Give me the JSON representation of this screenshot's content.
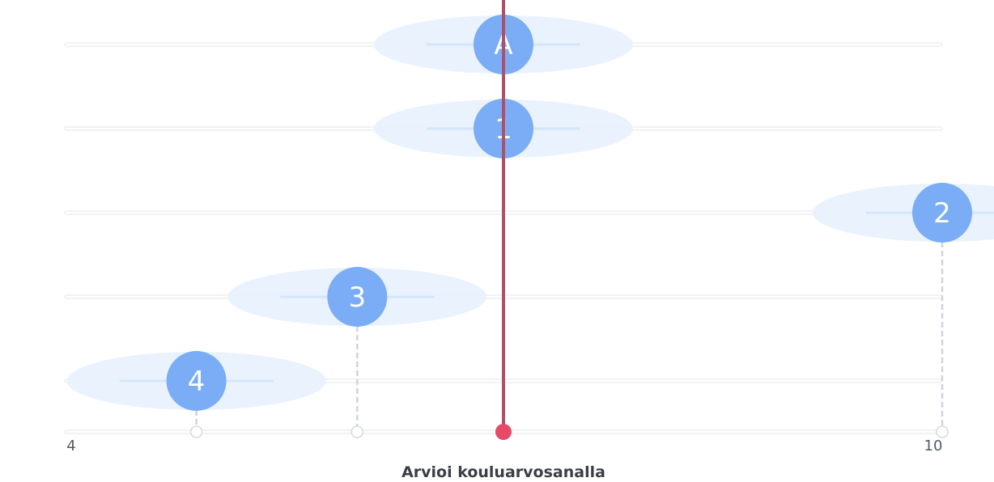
{
  "chart_data": {
    "type": "scatter",
    "xlabel": "Arvioi kouluarvosanalla",
    "xlim": [
      4,
      10
    ],
    "x_tick_labels": [
      "4",
      "10"
    ],
    "reference": {
      "label": "A",
      "value": 7.0
    },
    "items": [
      {
        "label": "1",
        "value": 7.0
      },
      {
        "label": "2",
        "value": 10.0
      },
      {
        "label": "3",
        "value": 6.0
      },
      {
        "label": "4",
        "value": 4.9
      }
    ],
    "colors": {
      "marker": "#7aadf5",
      "marker_text": "#ffffff",
      "halo": "#e8f2fd",
      "track": "#e6e6e6",
      "vertical_line": "#b05068",
      "vertical_dot": "#e64a67",
      "dashed": "#cfd4da"
    }
  }
}
